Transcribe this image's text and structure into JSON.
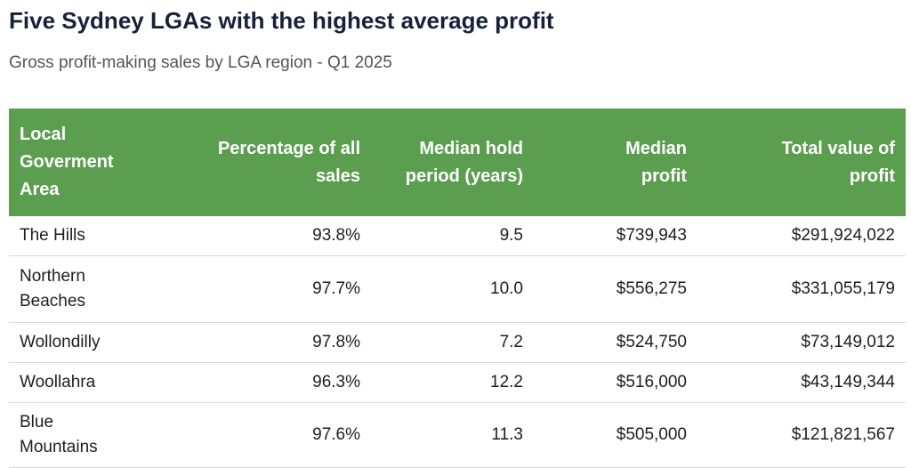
{
  "header": {
    "title": "Five Sydney LGAs with the highest average profit",
    "subtitle": "Gross profit-making sales by LGA region - Q1 2025"
  },
  "table": {
    "columns": [
      "Local Goverment Area",
      "Percentage of all sales",
      "Median hold period (years)",
      "Median profit",
      "Total value of profit"
    ],
    "rows": [
      [
        "The Hills",
        "93.8%",
        "9.5",
        "$739,943",
        "$291,924,022"
      ],
      [
        "Northern Beaches",
        "97.7%",
        "10.0",
        "$556,275",
        "$331,055,179"
      ],
      [
        "Wollondilly",
        "97.8%",
        "7.2",
        "$524,750",
        "$73,149,012"
      ],
      [
        "Woollahra",
        "96.3%",
        "12.2",
        "$516,000",
        "$43,149,344"
      ],
      [
        "Blue Mountains",
        "97.6%",
        "11.3",
        "$505,000",
        "$121,821,567"
      ]
    ]
  }
}
